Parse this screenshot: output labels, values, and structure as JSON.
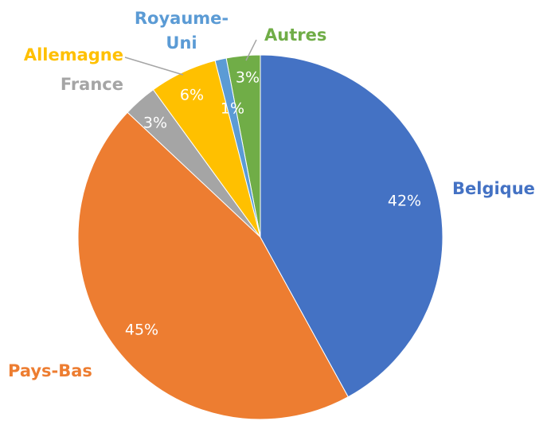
{
  "chart_data": {
    "type": "pie",
    "categories": [
      "Belgique",
      "Pays-Bas",
      "France",
      "Allemagne",
      "Royaume-Uni",
      "Autres"
    ],
    "values": [
      42,
      45,
      3,
      6,
      1,
      3
    ],
    "value_labels": [
      "42%",
      "45%",
      "3%",
      "6%",
      "1%",
      "3%"
    ],
    "colors": [
      "#4472c4",
      "#ed7d31",
      "#a5a5a5",
      "#ffc000",
      "#5b9bd5",
      "#70ad47"
    ]
  }
}
